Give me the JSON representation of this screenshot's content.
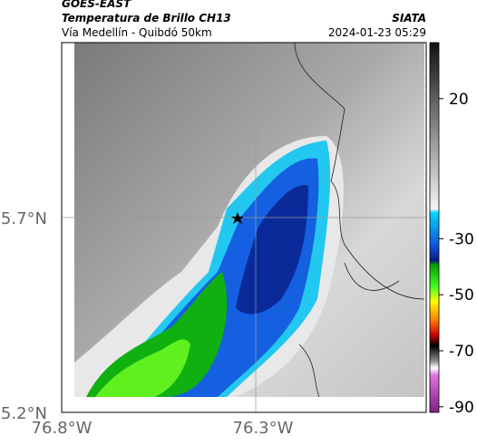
{
  "header": {
    "satellite": "GOES-EAST",
    "title": "Temperatura de Brillo CH13",
    "subtitle": "Vía Medellín - Quibdó 50km",
    "source": "SIATA",
    "datetime": "2024-01-23 05:29"
  },
  "map": {
    "x_labels": [
      "76.8°W",
      "76.3°W"
    ],
    "y_labels": [
      "5.7°N",
      "5.2°N"
    ]
  },
  "colorbar": {
    "lim": [
      -92,
      40
    ],
    "ticks": [
      20,
      -30,
      -50,
      -70,
      -90
    ]
  }
}
